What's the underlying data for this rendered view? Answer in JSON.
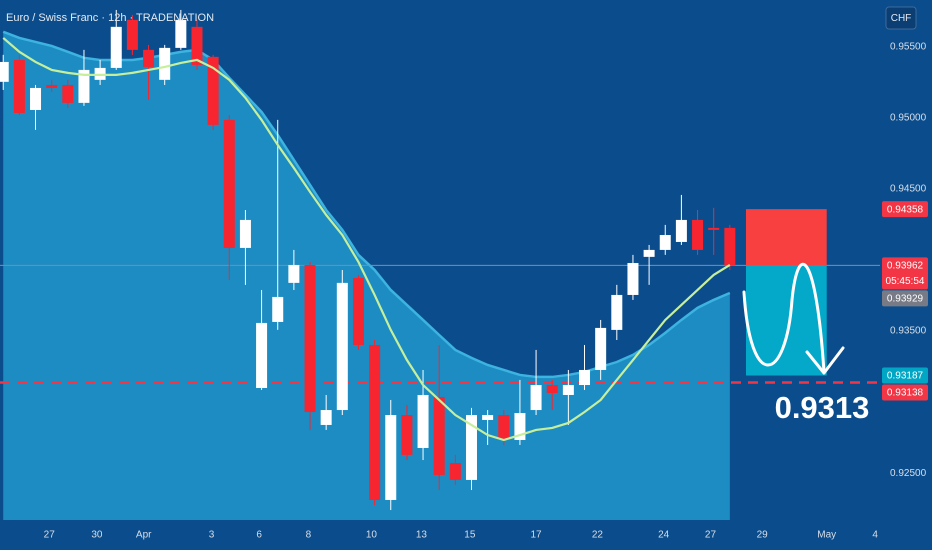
{
  "chart_data": {
    "type": "candlestick",
    "title": "Euro / Swiss Franc · 12h · TRADENATION",
    "currency": "CHF",
    "x": [
      0,
      1,
      2,
      3,
      4,
      5,
      6,
      7,
      8,
      9,
      10,
      11,
      12,
      13,
      14,
      15,
      16,
      17,
      18,
      19,
      20,
      21,
      22,
      23,
      24,
      25,
      26,
      27,
      28,
      29,
      30,
      31,
      32,
      33,
      34,
      35,
      36,
      37,
      38,
      39,
      40,
      41,
      42,
      43,
      44,
      45
    ],
    "open": [
      0.95254,
      0.95408,
      0.95056,
      0.95232,
      0.95232,
      0.95106,
      0.95268,
      0.95352,
      0.9569,
      0.95479,
      0.95268,
      0.95493,
      0.95641,
      0.9543,
      0.94986,
      0.94085,
      0.93099,
      0.93564,
      0.93839,
      0.93965,
      0.92839,
      0.92944,
      0.93874,
      0.93402,
      0.92311,
      0.92909,
      0.92677,
      0.93036,
      0.92571,
      0.92452,
      0.92874,
      0.92909,
      0.92733,
      0.92944,
      0.9312,
      0.9305,
      0.9312,
      0.93226,
      0.93508,
      0.93754,
      0.94022,
      0.94071,
      0.94127,
      0.94282,
      0.94226,
      0.94226
    ],
    "high": [
      0.95444,
      0.95444,
      0.95232,
      0.95268,
      0.95268,
      0.95479,
      0.95408,
      0.9576,
      0.95725,
      0.95514,
      0.95514,
      0.9576,
      0.9569,
      0.95444,
      0.95021,
      0.94352,
      0.93789,
      0.94986,
      0.94071,
      0.93986,
      0.9305,
      0.9393,
      0.93895,
      0.93437,
      0.93015,
      0.9298,
      0.93226,
      0.93402,
      0.92628,
      0.92959,
      0.92944,
      0.92944,
      0.93156,
      0.93367,
      0.93156,
      0.93226,
      0.93402,
      0.93578,
      0.93825,
      0.94036,
      0.94106,
      0.94247,
      0.94458,
      0.94352,
      0.94367,
      0.94247
    ],
    "low": [
      0.95197,
      0.95021,
      0.94916,
      0.95183,
      0.95071,
      0.95085,
      0.95232,
      0.95338,
      0.95444,
      0.95127,
      0.95232,
      0.95479,
      0.95338,
      0.94916,
      0.9386,
      0.93825,
      0.93085,
      0.93508,
      0.93789,
      0.92804,
      0.92804,
      0.92909,
      0.93367,
      0.92276,
      0.9224,
      0.92592,
      0.92592,
      0.92381,
      0.92416,
      0.92381,
      0.92698,
      0.92698,
      0.92698,
      0.92909,
      0.92944,
      0.92839,
      0.93085,
      0.93156,
      0.93437,
      0.93719,
      0.93825,
      0.94036,
      0.94106,
      0.94036,
      0.94036,
      0.9393
    ],
    "close": [
      0.95394,
      0.95035,
      0.95211,
      0.95211,
      0.95106,
      0.95338,
      0.95352,
      0.95641,
      0.95479,
      0.95359,
      0.95493,
      0.9569,
      0.95373,
      0.94951,
      0.94085,
      0.94282,
      0.93557,
      0.9374,
      0.93965,
      0.9293,
      0.92944,
      0.93839,
      0.93402,
      0.92311,
      0.92909,
      0.92628,
      0.9305,
      0.92487,
      0.92452,
      0.92909,
      0.92909,
      0.92733,
      0.92923,
      0.9312,
      0.93064,
      0.9312,
      0.93226,
      0.93522,
      0.93754,
      0.93979,
      0.94071,
      0.94176,
      0.94282,
      0.94071,
      0.94212,
      0.93962
    ],
    "up_color": "#ffffff",
    "down_color": "#f7252f",
    "ma": {
      "color": "#c6ef9c",
      "values": [
        0.95563,
        0.95465,
        0.95394,
        0.95338,
        0.95317,
        0.95303,
        0.95303,
        0.95303,
        0.95317,
        0.95338,
        0.95359,
        0.95387,
        0.95408,
        0.95352,
        0.95268,
        0.95141,
        0.94986,
        0.9481,
        0.94648,
        0.94479,
        0.94317,
        0.94176,
        0.93986,
        0.93754,
        0.93508,
        0.93296,
        0.9312,
        0.93015,
        0.92909,
        0.92839,
        0.92768,
        0.92733,
        0.92768,
        0.92804,
        0.92818,
        0.92853,
        0.9293,
        0.93015,
        0.93156,
        0.93296,
        0.93437,
        0.93578,
        0.93684,
        0.93789,
        0.93895,
        0.93965
      ]
    },
    "band": {
      "color": "#3db3e0",
      "fill": "#1c8cc3",
      "values": [
        0.95606,
        0.95563,
        0.95535,
        0.95507,
        0.95465,
        0.95423,
        0.95408,
        0.95408,
        0.95408,
        0.95423,
        0.95444,
        0.95465,
        0.95479,
        0.95408,
        0.95282,
        0.95162,
        0.95042,
        0.9488,
        0.94704,
        0.94528,
        0.94352,
        0.94212,
        0.94036,
        0.9393,
        0.93789,
        0.93684,
        0.93578,
        0.93472,
        0.93367,
        0.93311,
        0.93261,
        0.93226,
        0.93191,
        0.93177,
        0.93177,
        0.93191,
        0.93212,
        0.93247,
        0.93282,
        0.93332,
        0.93402,
        0.93487,
        0.93578,
        0.93663,
        0.93719,
        0.93768
      ]
    },
    "xlim": [
      -0.2,
      54.3
    ],
    "ylim": [
      0.9217,
      0.9583
    ],
    "xticks": [
      {
        "value": 2.85,
        "label": "27"
      },
      {
        "value": 5.8,
        "label": "30"
      },
      {
        "value": 8.7,
        "label": "Apr"
      },
      {
        "value": 12.9,
        "label": "3"
      },
      {
        "value": 15.85,
        "label": "6"
      },
      {
        "value": 18.9,
        "label": "8"
      },
      {
        "value": 22.8,
        "label": "10"
      },
      {
        "value": 25.9,
        "label": "13"
      },
      {
        "value": 28.9,
        "label": "15"
      },
      {
        "value": 33,
        "label": "17"
      },
      {
        "value": 36.8,
        "label": "22"
      },
      {
        "value": 40.9,
        "label": "24"
      },
      {
        "value": 43.8,
        "label": "27"
      },
      {
        "value": 47,
        "label": "29"
      },
      {
        "value": 51,
        "label": "May"
      },
      {
        "value": 54,
        "label": "4"
      }
    ],
    "yticks": [
      {
        "value": 0.955,
        "label": "0.95500"
      },
      {
        "value": 0.95,
        "label": "0.95000"
      },
      {
        "value": 0.945,
        "label": "0.94500"
      },
      {
        "value": 0.935,
        "label": "0.93500"
      },
      {
        "value": 0.925,
        "label": "0.92500"
      }
    ],
    "level_lines": [
      {
        "value": 0.93962,
        "style": "solid",
        "color": "#7d8fa8"
      },
      {
        "value": 0.93138,
        "style": "dashed",
        "color": "#f23645"
      }
    ],
    "price_labels": [
      {
        "value": 0.94358,
        "color": "#f23645"
      },
      {
        "value": 0.93962,
        "color": "#f23645",
        "countdown": "05:45:54"
      },
      {
        "value": 0.93929,
        "color": "#787b86"
      },
      {
        "value": 0.93187,
        "color": "#00a6c4"
      },
      {
        "value": 0.93138,
        "color": "#f23645"
      }
    ],
    "position": {
      "x_start": 46,
      "x_end": 51,
      "entry": 0.93962,
      "stop": 0.94358,
      "target": 0.93187,
      "stop_color": "#f7403f",
      "target_color": "#04a9c9"
    },
    "annotation": "0.9313"
  }
}
